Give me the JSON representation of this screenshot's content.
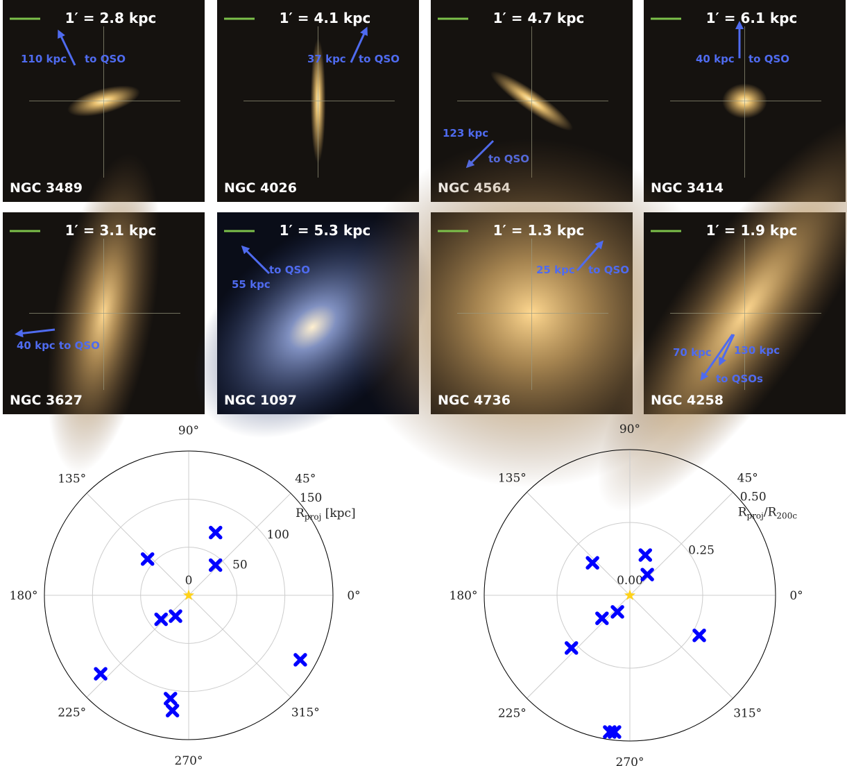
{
  "panels": [
    {
      "scale": "1′ = 2.8 kpc",
      "name": "NGC 3489",
      "labels": [
        "110 kpc",
        "to QSO"
      ]
    },
    {
      "scale": "1′ = 4.1 kpc",
      "name": "NGC 4026",
      "labels": [
        "37 kpc",
        "to QSO"
      ]
    },
    {
      "scale": "1′ = 4.7 kpc",
      "name": "NGC 4564",
      "labels": [
        "123 kpc",
        "to QSO"
      ]
    },
    {
      "scale": "1′ = 6.1 kpc",
      "name": "NGC 3414",
      "labels": [
        "40 kpc",
        "to QSO"
      ]
    },
    {
      "scale": "1′ = 3.1 kpc",
      "name": "NGC 3627",
      "labels": [
        "40 kpc to QSO"
      ]
    },
    {
      "scale": "1′ = 5.3 kpc",
      "name": "NGC 1097",
      "labels": [
        "to QSO",
        "55 kpc"
      ]
    },
    {
      "scale": "1′ = 1.3 kpc",
      "name": "NGC 4736",
      "labels": [
        "25 kpc",
        "to QSO"
      ]
    },
    {
      "scale": "1′ = 1.9 kpc",
      "name": "NGC 4258",
      "labels": [
        "70 kpc",
        "130 kpc",
        "to QSOs"
      ]
    }
  ],
  "chart_data": [
    {
      "type": "polar_scatter",
      "color": "#0000ff",
      "theta": [
        66.8,
        48.4,
        138.6,
        237.7,
        221,
        221.7,
        330,
        260,
        262
      ],
      "r": [
        71,
        42,
        57,
        25.6,
        38,
        122.6,
        134,
        109,
        121
      ],
      "rlim": [
        0,
        150
      ],
      "rticks": [
        0,
        50,
        100,
        150
      ],
      "rlabel": [
        "R",
        "proj",
        " [kpc]"
      ],
      "thetaticks": [
        {
          "value": 0,
          "label": "0°"
        },
        {
          "value": 45,
          "label": "45°"
        },
        {
          "value": 90,
          "label": "90°"
        },
        {
          "value": 135,
          "label": "135°"
        },
        {
          "value": 180,
          "label": "180°"
        },
        {
          "value": 225,
          "label": "225°"
        },
        {
          "value": 270,
          "label": "270°"
        },
        {
          "value": 315,
          "label": "315°"
        }
      ]
    },
    {
      "type": "polar_scatter",
      "color": "#0000ff",
      "theta": [
        69,
        50,
        139,
        233,
        219.5,
        222,
        330,
        261.6,
        263.6
      ],
      "r": [
        0.148,
        0.093,
        0.17,
        0.071,
        0.124,
        0.27,
        0.275,
        0.474,
        0.472
      ],
      "rlim": [
        0,
        0.5
      ],
      "rticks": [
        {
          "value": 0,
          "label": "0.00"
        },
        {
          "value": 0.25,
          "label": "0.25"
        },
        {
          "value": 0.5,
          "label": "0.50"
        }
      ],
      "rlabel": [
        "R",
        "proj",
        "/R",
        "200c"
      ],
      "thetaticks": [
        {
          "value": 0,
          "label": "0°"
        },
        {
          "value": 45,
          "label": "45°"
        },
        {
          "value": 90,
          "label": "90°"
        },
        {
          "value": 135,
          "label": "135°"
        },
        {
          "value": 180,
          "label": "180°"
        },
        {
          "value": 225,
          "label": "225°"
        },
        {
          "value": 270,
          "label": "270°"
        },
        {
          "value": 315,
          "label": "315°"
        }
      ]
    }
  ]
}
